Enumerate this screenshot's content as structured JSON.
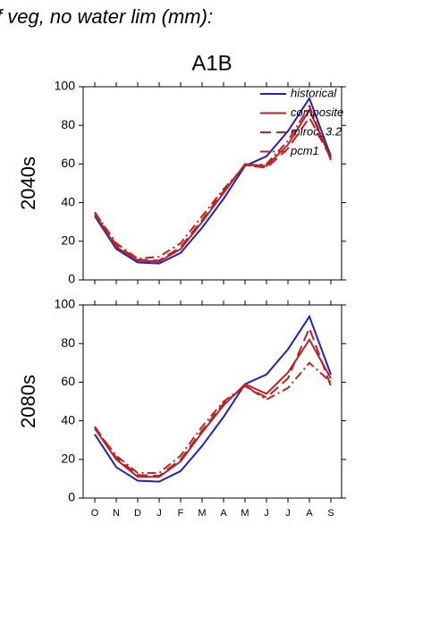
{
  "header": {
    "title": "f veg, no water lim (mm):",
    "subtitle": "A1B"
  },
  "chart_data": [
    {
      "type": "line",
      "y_label": "2040s",
      "categories": [
        null,
        null,
        null,
        null,
        null,
        null,
        null,
        null,
        null,
        null,
        null,
        null
      ],
      "ylim": [
        0,
        100
      ],
      "yticks": [
        0,
        20,
        40,
        60,
        80,
        100
      ],
      "legend": "top-right",
      "series": [
        {
          "name": "historical",
          "color": "#2222bb",
          "style": "solid",
          "values": [
            33,
            16,
            9,
            8.5,
            14,
            27,
            42,
            59,
            64,
            77,
            94,
            64
          ]
        },
        {
          "name": "composite",
          "color": "#bb2222",
          "style": "solid",
          "values": [
            34,
            17,
            10,
            9.5,
            16,
            30,
            45,
            60,
            59,
            70,
            88,
            63
          ]
        },
        {
          "name": "miroc_3.2",
          "color": "#bb2222",
          "style": "dashed",
          "values": [
            35,
            18,
            10.5,
            10,
            17,
            31,
            46,
            59.5,
            58,
            68,
            84,
            63
          ]
        },
        {
          "name": "pcm1",
          "color": "#bb2222",
          "style": "dashdot",
          "values": [
            35,
            19,
            11,
            12,
            19,
            33,
            47,
            59,
            60,
            72,
            90,
            62
          ]
        }
      ]
    },
    {
      "type": "line",
      "y_label": "2080s",
      "categories": [
        "O",
        "N",
        "D",
        "J",
        "F",
        "M",
        "A",
        "M",
        "J",
        "J",
        "A",
        "S"
      ],
      "ylim": [
        0,
        100
      ],
      "yticks": [
        0,
        20,
        40,
        60,
        80,
        100
      ],
      "series": [
        {
          "color": "#2222bb",
          "style": "solid",
          "values": [
            33,
            16,
            9,
            8.5,
            14,
            27,
            42,
            59,
            64,
            77,
            94,
            64
          ]
        },
        {
          "color": "#bb2222",
          "style": "solid",
          "values": [
            36,
            20,
            11,
            11,
            19,
            34,
            48,
            59,
            54,
            65,
            82,
            62
          ]
        },
        {
          "color": "#bb2222",
          "style": "dashed",
          "values": [
            37,
            21,
            12,
            11.5,
            20,
            35,
            49,
            58,
            52,
            62,
            88,
            58
          ]
        },
        {
          "color": "#bb2222",
          "style": "dashdot",
          "values": [
            36,
            22,
            13,
            13,
            22,
            37,
            50,
            58,
            51,
            57,
            70,
            60
          ]
        }
      ]
    }
  ]
}
